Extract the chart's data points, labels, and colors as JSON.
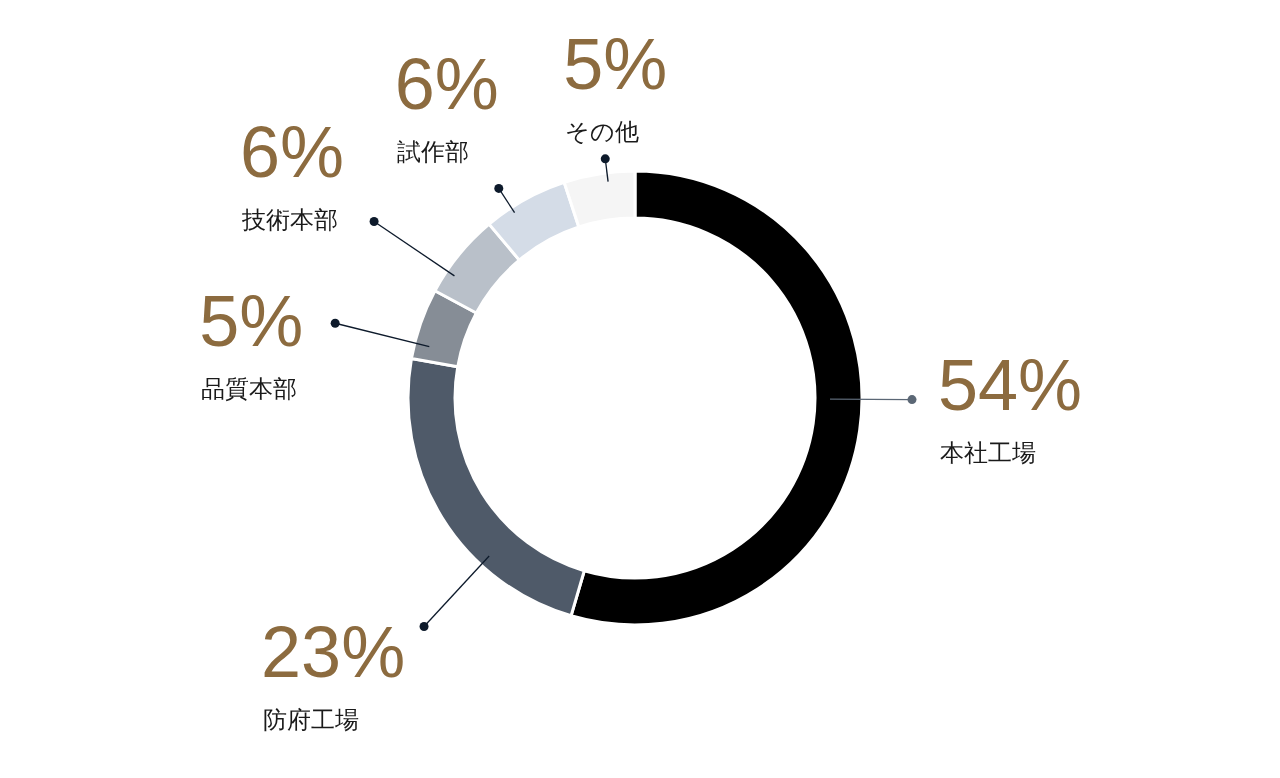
{
  "chart_data": {
    "type": "donut",
    "categories": [
      "本社工場",
      "防府工場",
      "品質本部",
      "技術本部",
      "試作部",
      "その他"
    ],
    "values": [
      54,
      23,
      5,
      6,
      6,
      5
    ],
    "colors": [
      "#000000",
      "#4f5a69",
      "#868d96",
      "#b9c0c9",
      "#d4dce7",
      "#f5f5f5"
    ],
    "value_labels": [
      "54%",
      "23%",
      "5%",
      "6%",
      "6%",
      "5%"
    ]
  }
}
